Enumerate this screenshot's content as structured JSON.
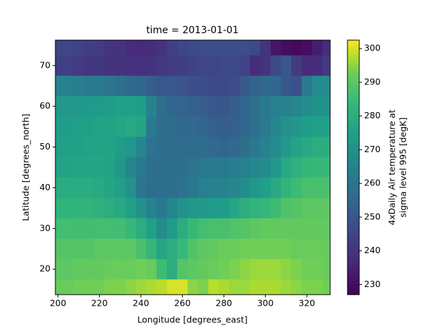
{
  "chart_data": {
    "type": "heatmap",
    "title": "time = 2013-01-01",
    "x_label": "Longitude [degrees_east]",
    "y_label": "Latitude [degrees_north]",
    "colorbar_label": [
      "4xDaily Air temperature at",
      "sigma level 995 [degK]"
    ],
    "cmap": "viridis",
    "x": [
      200,
      205,
      210,
      215,
      220,
      225,
      230,
      235,
      240,
      245,
      250,
      255,
      260,
      265,
      270,
      275,
      280,
      285,
      290,
      295,
      300,
      305,
      310,
      315,
      320,
      325,
      330
    ],
    "y": [
      75,
      70,
      65,
      60,
      55,
      50,
      45,
      40,
      35,
      30,
      25,
      20,
      15
    ],
    "values": [
      [
        245,
        245,
        244,
        243,
        242,
        240,
        240,
        238,
        237,
        238,
        240,
        243,
        245,
        246,
        247,
        248,
        248,
        247,
        247,
        246,
        240,
        232,
        230,
        229,
        230,
        234,
        238
      ],
      [
        243,
        243,
        242,
        241,
        241,
        240,
        240,
        239,
        239,
        240,
        241,
        242,
        243,
        244,
        245,
        245,
        246,
        246,
        244,
        238,
        240,
        246,
        250,
        242,
        238,
        238,
        242
      ],
      [
        265,
        264,
        263,
        262,
        262,
        260,
        258,
        256,
        255,
        252,
        250,
        250,
        249,
        248,
        247,
        246,
        246,
        247,
        250,
        254,
        256,
        255,
        250,
        248,
        262,
        268,
        268
      ],
      [
        272,
        272,
        272,
        273,
        273,
        274,
        275,
        275,
        274,
        265,
        258,
        255,
        254,
        253,
        252,
        250,
        250,
        252,
        255,
        258,
        262,
        264,
        265,
        266,
        268,
        270,
        270
      ],
      [
        274,
        274,
        275,
        275,
        276,
        276,
        277,
        278,
        277,
        262,
        258,
        257,
        256,
        256,
        255,
        253,
        252,
        253,
        255,
        258,
        262,
        266,
        270,
        272,
        274,
        275,
        275
      ],
      [
        275,
        275,
        275,
        276,
        276,
        276,
        274,
        272,
        266,
        259,
        258,
        257,
        257,
        257,
        257,
        256,
        255,
        256,
        258,
        262,
        265,
        268,
        272,
        276,
        278,
        280,
        280
      ],
      [
        276,
        276,
        277,
        277,
        277,
        276,
        272,
        266,
        262,
        258,
        258,
        258,
        258,
        259,
        261,
        262,
        262,
        263,
        264,
        266,
        268,
        272,
        278,
        281,
        283,
        284,
        284
      ],
      [
        279,
        279,
        279,
        279,
        278,
        277,
        275,
        270,
        260,
        257,
        258,
        258,
        259,
        261,
        264,
        265,
        265,
        266,
        268,
        272,
        275,
        278,
        282,
        285,
        287,
        287,
        287
      ],
      [
        282,
        282,
        282,
        282,
        281,
        280,
        278,
        275,
        270,
        265,
        262,
        266,
        270,
        272,
        272,
        273,
        274,
        277,
        280,
        282,
        283,
        285,
        288,
        289,
        290,
        290,
        290
      ],
      [
        286,
        286,
        286,
        286,
        286,
        286,
        286,
        284,
        280,
        275,
        268,
        274,
        280,
        284,
        286,
        287,
        287,
        288,
        289,
        290,
        291,
        291,
        291,
        291,
        291,
        291,
        291
      ],
      [
        289,
        289,
        289,
        289,
        290,
        290,
        290,
        290,
        287,
        283,
        277,
        280,
        284,
        288,
        290,
        291,
        292,
        292,
        293,
        293,
        293,
        293,
        293,
        292,
        292,
        292,
        292
      ],
      [
        290,
        290,
        291,
        291,
        291,
        292,
        292,
        292,
        293,
        292,
        285,
        280,
        289,
        290,
        291,
        292,
        293,
        294,
        295,
        296,
        296,
        296,
        295,
        294,
        293,
        293,
        292
      ],
      [
        292,
        292,
        293,
        293,
        293,
        294,
        294,
        295,
        296,
        297,
        298,
        300,
        300,
        295,
        294,
        298,
        297,
        296,
        296,
        297,
        297,
        297,
        296,
        295,
        294,
        294,
        293
      ]
    ],
    "xlim": [
      198.75,
      331.25
    ],
    "ylim": [
      13.75,
      76.25
    ],
    "xticks": [
      200,
      220,
      240,
      260,
      280,
      300,
      320
    ],
    "yticks": [
      20,
      30,
      40,
      50,
      60,
      70
    ],
    "clim": [
      227,
      302.5
    ],
    "cticks": [
      230,
      240,
      250,
      260,
      270,
      280,
      290,
      300
    ]
  }
}
